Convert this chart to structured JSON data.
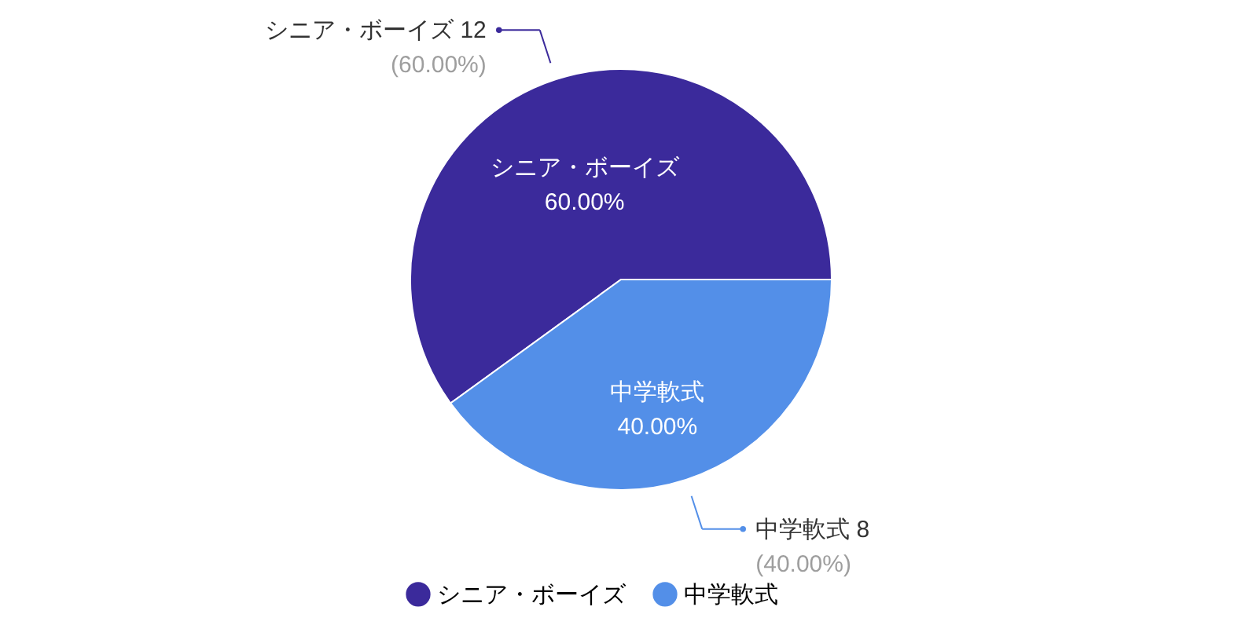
{
  "chart_data": {
    "type": "pie",
    "categories": [
      "シニア・ボーイズ",
      "中学軟式"
    ],
    "values": [
      12,
      8
    ],
    "value_labels": [
      "12",
      "8"
    ],
    "colors": [
      "#3b2a9b",
      "#538fe8"
    ],
    "legend": "bottom",
    "annotations": [
      "60.00%",
      "40.00%",
      "(60.00%)",
      "(40.00%)"
    ]
  }
}
